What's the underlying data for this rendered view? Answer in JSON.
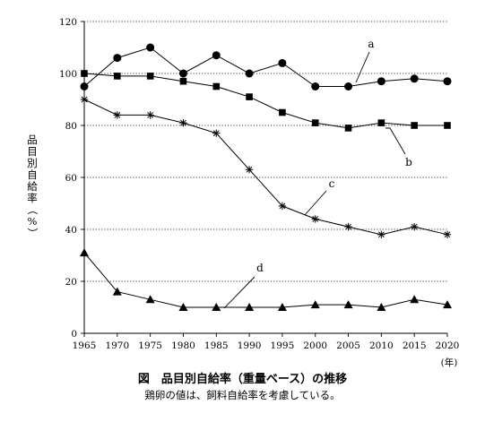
{
  "caption": {
    "title": "図　品目別自給率（重量ベース）の推移",
    "note": "鶏卵の値は、飼料自給率を考慮している。"
  },
  "chart_data": {
    "type": "line",
    "x": [
      1965,
      1970,
      1975,
      1980,
      1985,
      1990,
      1995,
      2000,
      2005,
      2010,
      2015,
      2020
    ],
    "x_unit_label": "(年)",
    "ylabel": "品目別自給率（%）",
    "ylim": [
      0,
      120
    ],
    "yticks": [
      0,
      20,
      40,
      60,
      80,
      100,
      120
    ],
    "grid": "horizontal dotted",
    "series": [
      {
        "name": "a",
        "marker": "circle",
        "values": [
          95,
          106,
          110,
          100,
          107,
          100,
          104,
          95,
          95,
          97,
          98,
          97
        ]
      },
      {
        "name": "b",
        "marker": "square",
        "values": [
          100,
          99,
          99,
          97,
          95,
          91,
          85,
          81,
          79,
          81,
          80,
          80
        ]
      },
      {
        "name": "c",
        "marker": "asterisk",
        "values": [
          90,
          84,
          84,
          81,
          77,
          63,
          49,
          44,
          41,
          38,
          41,
          38
        ]
      },
      {
        "name": "d",
        "marker": "triangle",
        "values": [
          31,
          16,
          13,
          10,
          10,
          10,
          10,
          11,
          11,
          10,
          13,
          11
        ]
      }
    ]
  }
}
